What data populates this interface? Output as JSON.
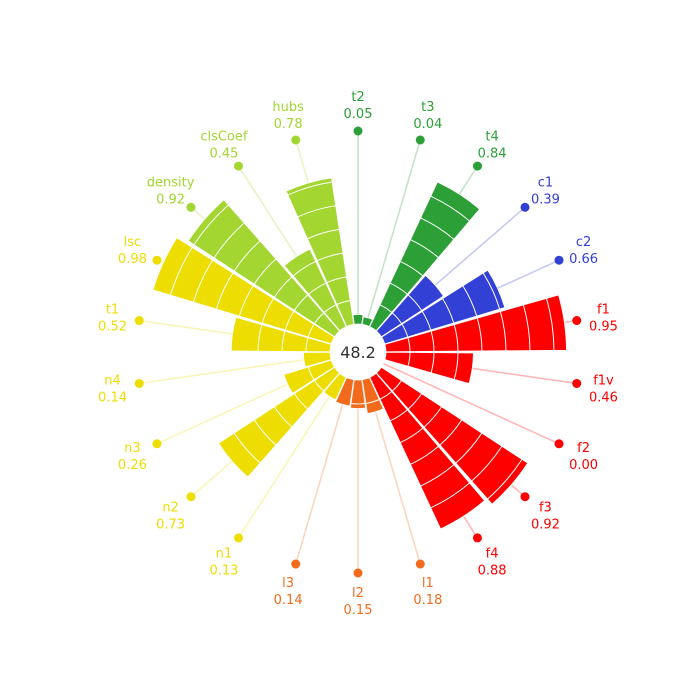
{
  "chart_data": {
    "type": "radial-bar",
    "center_value": "48.2",
    "segments": [
      {
        "name": "f1",
        "label": "0.95",
        "value": 0.95,
        "color": "#ff0000"
      },
      {
        "name": "f1v",
        "label": "0.46",
        "value": 0.46,
        "color": "#ff0000"
      },
      {
        "name": "f2",
        "label": "0.00",
        "value": 0.0,
        "color": "#ff0000"
      },
      {
        "name": "f3",
        "label": "0.92",
        "value": 0.92,
        "color": "#ff0000"
      },
      {
        "name": "f4",
        "label": "0.88",
        "value": 0.88,
        "color": "#ff0000"
      },
      {
        "name": "l1",
        "label": "0.18",
        "value": 0.18,
        "color": "#f26b1d"
      },
      {
        "name": "l2",
        "label": "0.15",
        "value": 0.15,
        "color": "#f26b1d"
      },
      {
        "name": "l3",
        "label": "0.14",
        "value": 0.14,
        "color": "#f26b1d"
      },
      {
        "name": "n1",
        "label": "0.13",
        "value": 0.13,
        "color": "#eedd00"
      },
      {
        "name": "n2",
        "label": "0.73",
        "value": 0.73,
        "color": "#eedd00"
      },
      {
        "name": "n3",
        "label": "0.26",
        "value": 0.26,
        "color": "#eedd00"
      },
      {
        "name": "n4",
        "label": "0.14",
        "value": 0.14,
        "color": "#eedd00"
      },
      {
        "name": "t1",
        "label": "0.52",
        "value": 0.52,
        "color": "#eedd00"
      },
      {
        "name": "lsc",
        "label": "0.98",
        "value": 0.98,
        "color": "#eedd00"
      },
      {
        "name": "density",
        "label": "0.92",
        "value": 0.92,
        "color": "#a3d630"
      },
      {
        "name": "clsCoef",
        "label": "0.45",
        "value": 0.45,
        "color": "#a3d630"
      },
      {
        "name": "hubs",
        "label": "0.78",
        "value": 0.78,
        "color": "#a3d630"
      },
      {
        "name": "t2",
        "label": "0.05",
        "value": 0.05,
        "color": "#2ca037"
      },
      {
        "name": "t3",
        "label": "0.04",
        "value": 0.04,
        "color": "#2ca037"
      },
      {
        "name": "t4",
        "label": "0.84",
        "value": 0.84,
        "color": "#2ca037"
      },
      {
        "name": "c1",
        "label": "0.39",
        "value": 0.39,
        "color": "#3340d6"
      },
      {
        "name": "c2",
        "label": "0.66",
        "value": 0.66,
        "color": "#3340d6"
      }
    ]
  }
}
